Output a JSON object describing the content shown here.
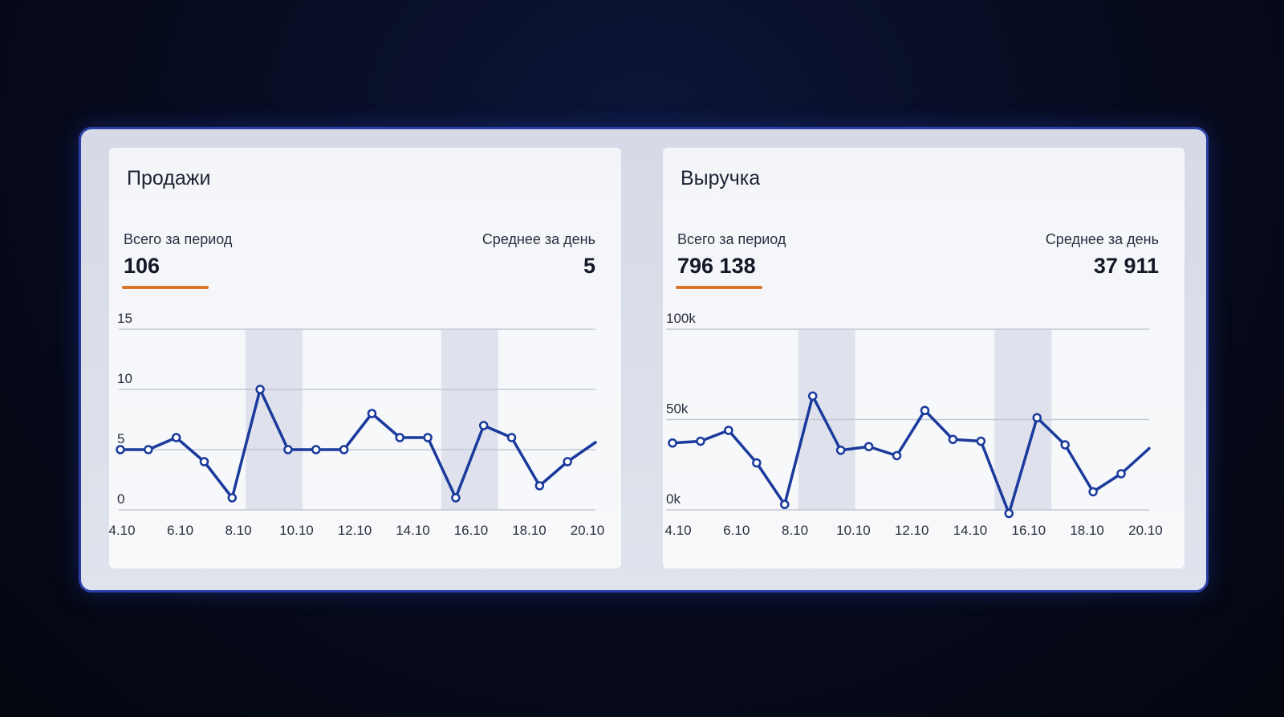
{
  "colors": {
    "line": "#1a3a9c",
    "accent": "#d9762c",
    "highlight": "#dfe2ec",
    "grid": "#c4c8d4"
  },
  "sales": {
    "title": "Продажи",
    "total_label": "Всего за период",
    "total_value": "106",
    "avg_label": "Среднее за день",
    "avg_value": "5"
  },
  "revenue": {
    "title": "Выручка",
    "total_label": "Всего за период",
    "total_value": "796 138",
    "avg_label": "Среднее за день",
    "avg_value": "37 911"
  },
  "chart_data": [
    {
      "type": "line",
      "title": "Продажи",
      "x": [
        "4.10",
        "5.10",
        "6.10",
        "7.10",
        "8.10",
        "9.10",
        "10.10",
        "11.10",
        "12.10",
        "13.10",
        "14.10",
        "15.10",
        "16.10",
        "17.10",
        "18.10",
        "19.10",
        "20.10",
        "21.10"
      ],
      "x_tick_labels": [
        "4.10",
        "6.10",
        "8.10",
        "10.10",
        "12.10",
        "14.10",
        "16.10",
        "18.10",
        "20.10"
      ],
      "y_ticks": [
        "0",
        "5",
        "10",
        "15"
      ],
      "ylim": [
        0,
        15
      ],
      "highlight_ranges": [
        [
          "9.10",
          "10.10"
        ],
        [
          "16.10",
          "17.10"
        ]
      ],
      "series": [
        {
          "values": [
            5,
            5,
            6,
            4,
            1,
            10,
            5,
            5,
            5,
            8,
            6,
            6,
            1,
            7,
            6,
            2,
            4,
            5.6
          ]
        }
      ],
      "grid": true
    },
    {
      "type": "line",
      "title": "Выручка",
      "x": [
        "4.10",
        "5.10",
        "6.10",
        "7.10",
        "8.10",
        "9.10",
        "10.10",
        "11.10",
        "12.10",
        "13.10",
        "14.10",
        "15.10",
        "16.10",
        "17.10",
        "18.10",
        "19.10",
        "20.10",
        "21.10"
      ],
      "x_tick_labels": [
        "4.10",
        "6.10",
        "8.10",
        "10.10",
        "12.10",
        "14.10",
        "16.10",
        "18.10",
        "20.10"
      ],
      "y_ticks": [
        "0k",
        "50k",
        "100k"
      ],
      "ylim": [
        0,
        100000
      ],
      "highlight_ranges": [
        [
          "9.10",
          "10.10"
        ],
        [
          "16.10",
          "17.10"
        ]
      ],
      "series": [
        {
          "values": [
            37000,
            38000,
            44000,
            26000,
            3000,
            63000,
            33000,
            35000,
            30000,
            55000,
            39000,
            38000,
            -2000,
            51000,
            36000,
            10000,
            20000,
            34000
          ]
        }
      ],
      "grid": true
    }
  ]
}
